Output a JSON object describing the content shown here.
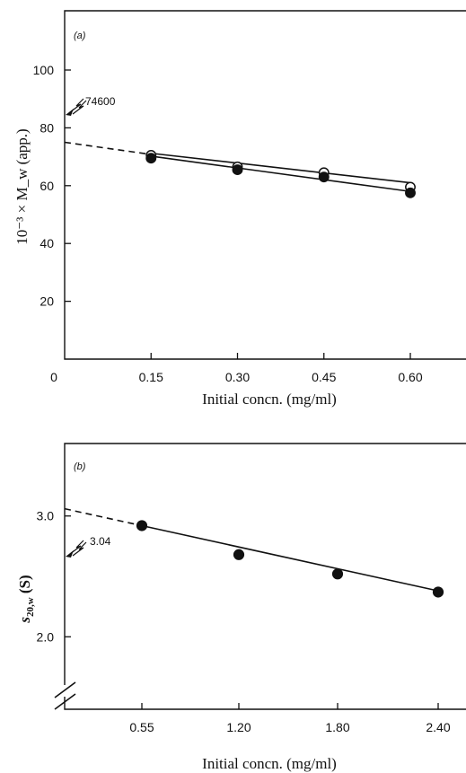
{
  "chart_data": [
    {
      "type": "scatter",
      "panel_label": "(a)",
      "xlabel": "Initial concn. (mg/ml)",
      "ylabel": "10⁻³ × M_w (app.)",
      "xlim": [
        0,
        0.6
      ],
      "ylim": [
        0,
        100
      ],
      "x_ticks": [
        "0",
        "0.15",
        "0.30",
        "0.45",
        "0.60"
      ],
      "y_ticks": [
        "20",
        "40",
        "60",
        "80",
        "100"
      ],
      "series": [
        {
          "marker": "open-circle",
          "x": [
            0.15,
            0.3,
            0.45,
            0.6
          ],
          "y": [
            70.5,
            66.5,
            64.5,
            59.5
          ],
          "fit_end": 61.0
        },
        {
          "marker": "filled-circle",
          "x": [
            0.15,
            0.3,
            0.45,
            0.6
          ],
          "y": [
            69.5,
            65.5,
            63.0,
            57.5
          ],
          "fit_end": 58.0
        }
      ],
      "extrapolation_value": 75.0,
      "annotation": "74600",
      "grid": false
    },
    {
      "type": "scatter",
      "panel_label": "(b)",
      "xlabel": "Initial concn. (mg/ml)",
      "ylabel": "s20,w (S)",
      "ylim": [
        1.4,
        3.6
      ],
      "x_ticks": [
        "0.55",
        "1.20",
        "1.80",
        "2.40"
      ],
      "y_ticks": [
        "2.0",
        "3.0"
      ],
      "series": [
        {
          "marker": "filled-circle",
          "x": [
            0.55,
            1.2,
            1.8,
            2.4
          ],
          "y": [
            2.92,
            2.68,
            2.52,
            2.37
          ],
          "fit_end": 2.38
        }
      ],
      "extrapolation_value": 3.06,
      "annotation": "3.04",
      "axis_break": true,
      "grid": false
    }
  ]
}
